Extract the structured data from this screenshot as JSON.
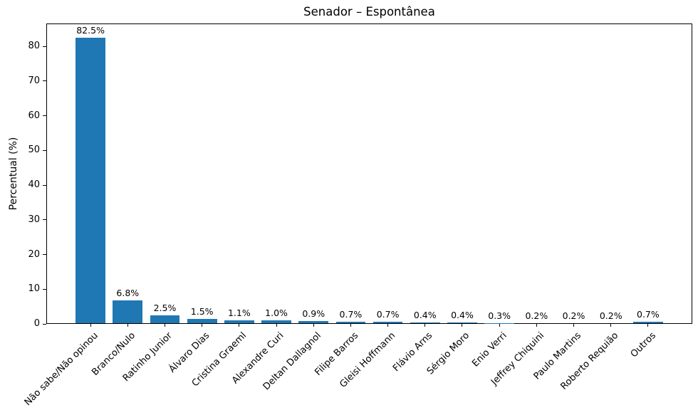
{
  "chart_data": {
    "type": "bar",
    "title": "Senador – Espontânea",
    "xlabel": "",
    "ylabel": "Percentual (%)",
    "categories": [
      "Não sabe/Não opinou",
      "Branco/Nulo",
      "Ratinho Junior",
      "Álvaro Dias",
      "Cristina Graeml",
      "Alexandre Curi",
      "Deltan Dallagnol",
      "Filipe Barros",
      "Gleisi Hoffmann",
      "Flávio Arns",
      "Sérgio Moro",
      "Enio Verri",
      "Jeffrey Chiquini",
      "Paulo Martins",
      "Roberto Requião",
      "Outros"
    ],
    "values": [
      82.5,
      6.8,
      2.5,
      1.5,
      1.1,
      1.0,
      0.9,
      0.7,
      0.7,
      0.4,
      0.4,
      0.3,
      0.2,
      0.2,
      0.2,
      0.7
    ],
    "value_labels": [
      "82.5%",
      "6.8%",
      "2.5%",
      "1.5%",
      "1.1%",
      "1.0%",
      "0.9%",
      "0.7%",
      "0.7%",
      "0.4%",
      "0.4%",
      "0.3%",
      "0.2%",
      "0.2%",
      "0.2%",
      "0.7%"
    ],
    "yticks": [
      0,
      10,
      20,
      30,
      40,
      50,
      60,
      70,
      80
    ],
    "ylim": [
      0,
      86.6
    ],
    "bar_color": "#1f77b4",
    "axis_color": "#000000",
    "text_color": "#000000",
    "grid": false,
    "legend_position": "none",
    "x_tick_rotation_deg": 45
  }
}
